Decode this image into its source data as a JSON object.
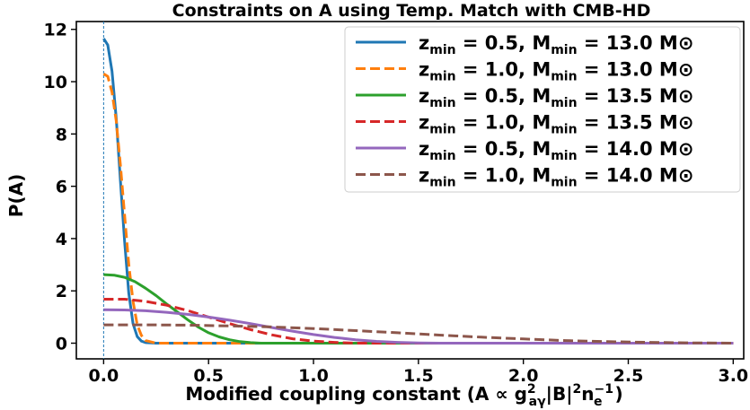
{
  "chart_data": {
    "type": "line",
    "title": "Constraints on A using Temp. Match with CMB-HD",
    "xlabel": {
      "prefix": "Modified coupling constant (A ∝ g",
      "sup1": "2",
      "sub1": "aγ",
      "mid": "|B|",
      "sup2": "2",
      "mid2": "n",
      "sub2": "e",
      "sup3": "−1",
      "suffix": ")"
    },
    "ylabel": "P(A)",
    "xlim": [
      -0.13,
      3.05
    ],
    "ylim": [
      -0.6,
      12.3
    ],
    "xticks": [
      0.0,
      0.5,
      1.0,
      1.5,
      2.0,
      2.5,
      3.0
    ],
    "xtick_labels": [
      "0.0",
      "0.5",
      "1.0",
      "1.5",
      "2.0",
      "2.5",
      "3.0"
    ],
    "yticks": [
      0,
      2,
      4,
      6,
      8,
      10,
      12
    ],
    "ytick_labels": [
      "0",
      "2",
      "4",
      "6",
      "8",
      "10",
      "12"
    ],
    "grid": false,
    "legend_position": "upper right",
    "vline_x": 0.0,
    "series": [
      {
        "name": {
          "zmin": "0.5",
          "mmin": "13.0"
        },
        "color": "#1f77b4",
        "dash": "solid",
        "x": [
          0.0,
          0.02,
          0.04,
          0.06,
          0.08,
          0.1,
          0.12,
          0.14,
          0.16,
          0.18,
          0.2,
          0.25,
          3.0
        ],
        "y": [
          11.65,
          11.4,
          10.4,
          8.6,
          6.2,
          3.9,
          1.9,
          0.75,
          0.25,
          0.08,
          0.02,
          0.0,
          0.0
        ]
      },
      {
        "name": {
          "zmin": "1.0",
          "mmin": "13.0"
        },
        "color": "#ff7f0e",
        "dash": "dashed",
        "x": [
          0.0,
          0.02,
          0.04,
          0.06,
          0.08,
          0.1,
          0.12,
          0.14,
          0.16,
          0.18,
          0.2,
          0.25,
          3.0
        ],
        "y": [
          10.3,
          10.2,
          9.6,
          8.5,
          6.8,
          4.9,
          3.0,
          1.6,
          0.7,
          0.3,
          0.1,
          0.0,
          0.0
        ]
      },
      {
        "name": {
          "zmin": "0.5",
          "mmin": "13.5"
        },
        "color": "#2ca02c",
        "dash": "solid",
        "x": [
          0.0,
          0.05,
          0.1,
          0.15,
          0.2,
          0.25,
          0.3,
          0.35,
          0.4,
          0.45,
          0.5,
          0.55,
          0.6,
          0.65,
          0.7,
          0.75,
          0.8,
          3.0
        ],
        "y": [
          2.62,
          2.6,
          2.52,
          2.35,
          2.1,
          1.82,
          1.5,
          1.2,
          0.9,
          0.62,
          0.4,
          0.24,
          0.13,
          0.06,
          0.02,
          0.0,
          0.0,
          0.0
        ]
      },
      {
        "name": {
          "zmin": "1.0",
          "mmin": "13.5"
        },
        "color": "#d62728",
        "dash": "dashed",
        "x": [
          0.0,
          0.1,
          0.2,
          0.3,
          0.4,
          0.5,
          0.6,
          0.7,
          0.8,
          0.9,
          1.0,
          1.1,
          1.2,
          3.0
        ],
        "y": [
          1.68,
          1.68,
          1.6,
          1.45,
          1.25,
          1.0,
          0.75,
          0.52,
          0.32,
          0.17,
          0.08,
          0.03,
          0.0,
          0.0
        ]
      },
      {
        "name": {
          "zmin": "0.5",
          "mmin": "14.0"
        },
        "color": "#9467bd",
        "dash": "solid",
        "x": [
          0.0,
          0.1,
          0.2,
          0.3,
          0.4,
          0.5,
          0.6,
          0.7,
          0.8,
          0.9,
          1.0,
          1.1,
          1.2,
          1.3,
          1.4,
          1.5,
          1.6,
          3.0
        ],
        "y": [
          1.28,
          1.27,
          1.24,
          1.18,
          1.1,
          1.0,
          0.88,
          0.75,
          0.6,
          0.46,
          0.33,
          0.22,
          0.13,
          0.07,
          0.03,
          0.01,
          0.0,
          0.0
        ]
      },
      {
        "name": {
          "zmin": "1.0",
          "mmin": "14.0"
        },
        "color": "#8c564b",
        "dash": "dashed",
        "x": [
          0.0,
          0.2,
          0.4,
          0.6,
          0.8,
          1.0,
          1.2,
          1.4,
          1.6,
          1.8,
          2.0,
          2.2,
          2.4,
          2.6,
          2.8,
          3.0
        ],
        "y": [
          0.7,
          0.7,
          0.69,
          0.66,
          0.62,
          0.56,
          0.48,
          0.4,
          0.31,
          0.23,
          0.16,
          0.1,
          0.06,
          0.03,
          0.01,
          0.0
        ]
      }
    ],
    "legend_template": {
      "z": "z",
      "zsub": "min",
      "eq1": " = ",
      "sep": ", ",
      "m": "M",
      "msub": "min",
      "eq2": " = ",
      "sun": " M⊙"
    }
  }
}
